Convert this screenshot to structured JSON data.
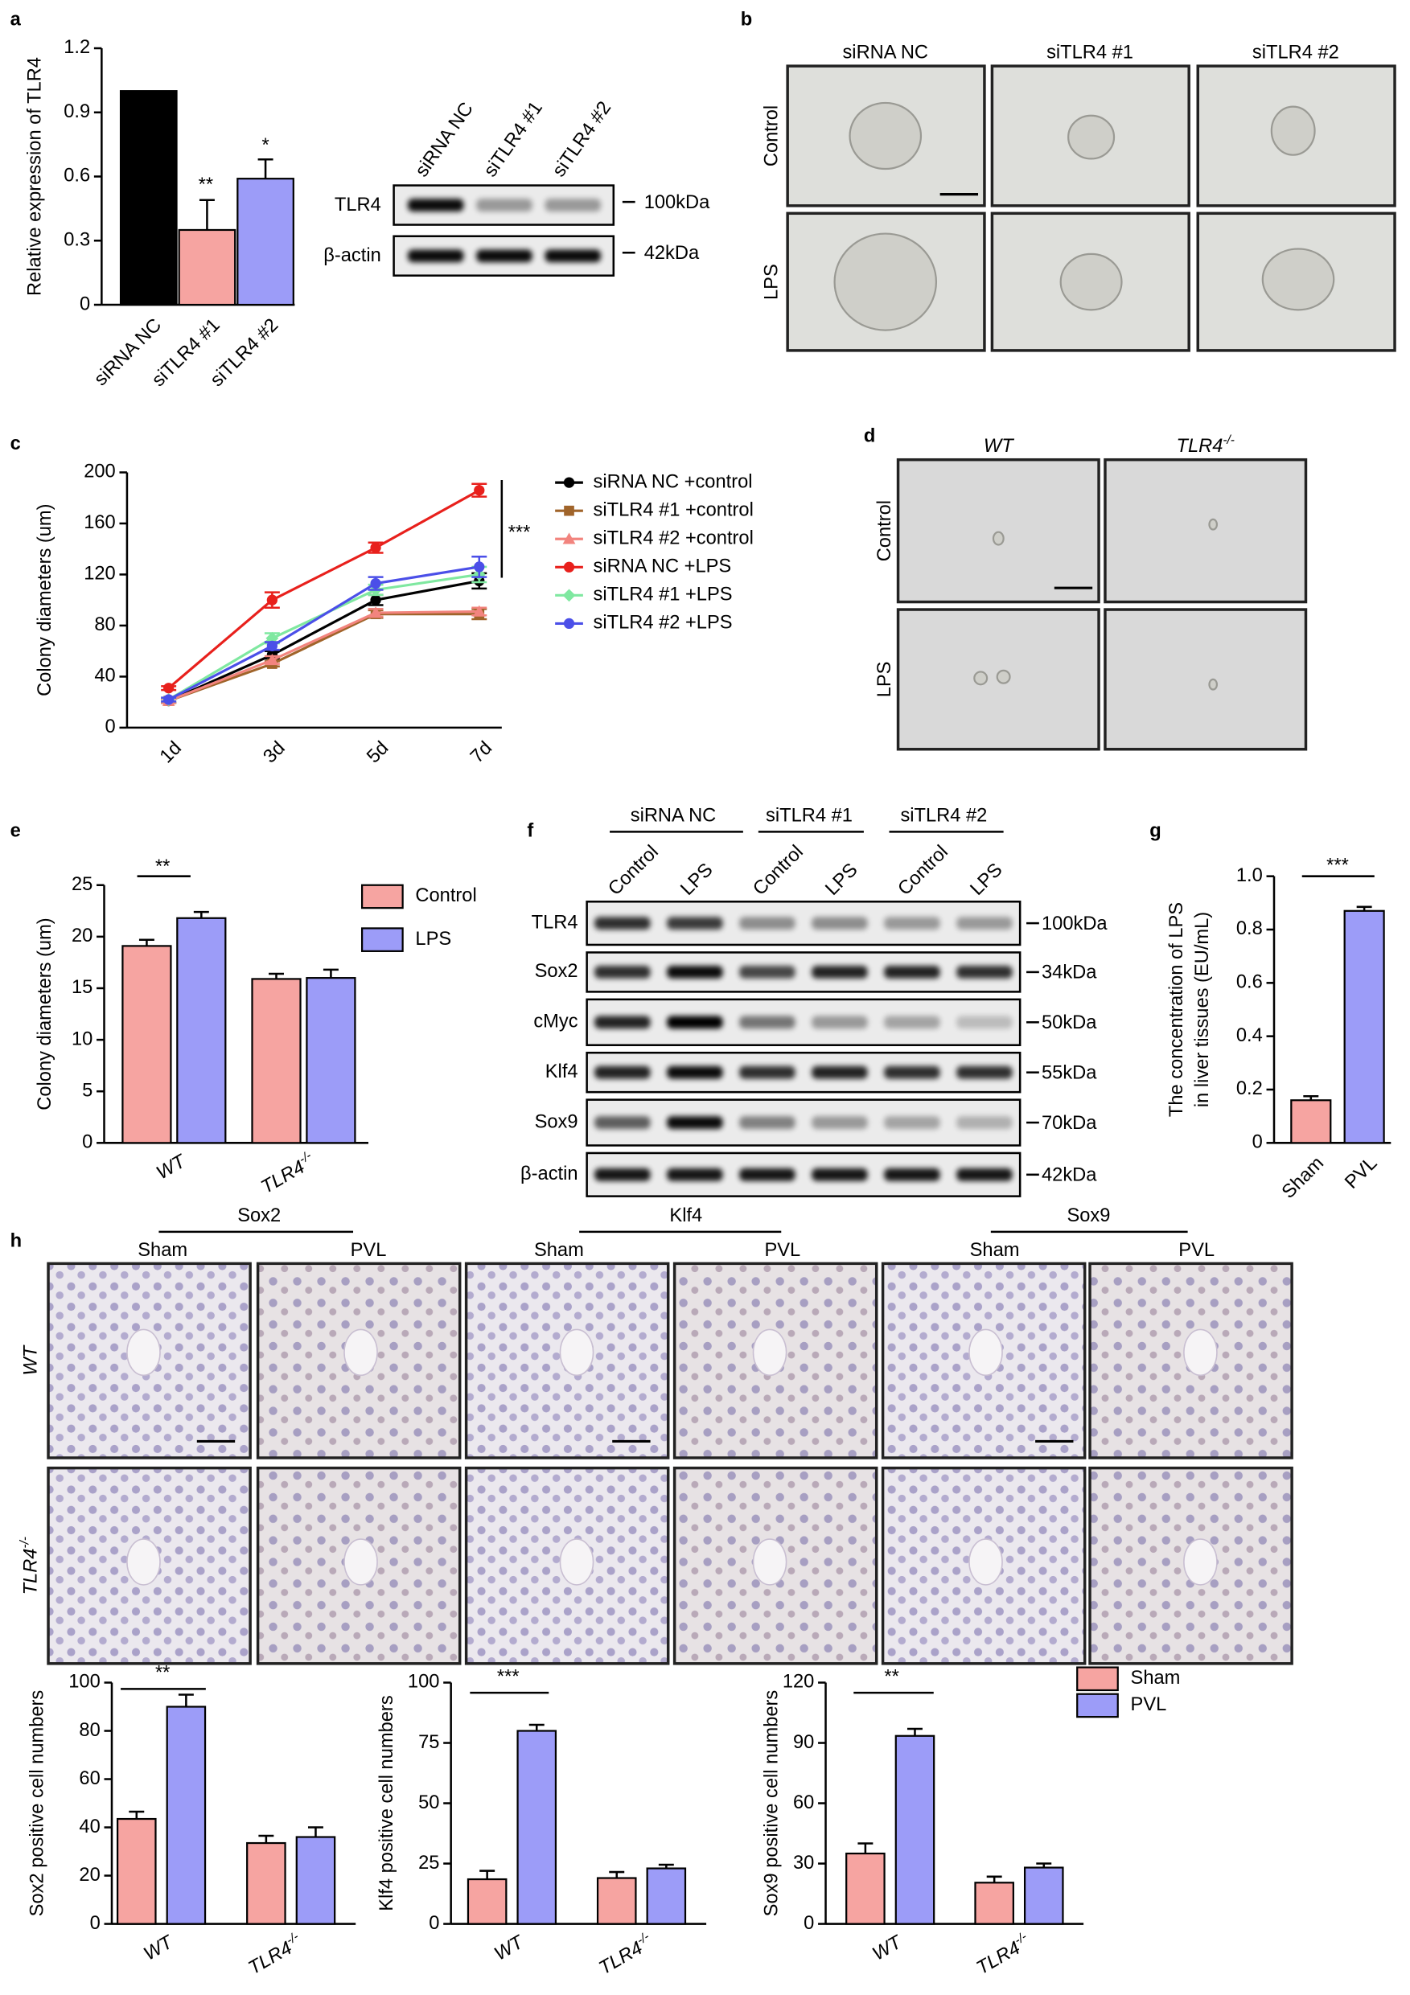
{
  "panel_labels": [
    "a",
    "b",
    "c",
    "d",
    "e",
    "f",
    "g",
    "h"
  ],
  "blot_a": {
    "lanes": [
      "siRNA NC",
      "siTLR4 #1",
      "siTLR4 #2"
    ],
    "rows": [
      "TLR4",
      "β-actin"
    ],
    "sizes": [
      "100kDa",
      "42kDa"
    ]
  },
  "panel_b": {
    "columns": [
      "siRNA NC",
      "siTLR4 #1",
      "siTLR4 #2"
    ],
    "rows": [
      "Control",
      "LPS"
    ]
  },
  "panel_d": {
    "columns": [
      "WT",
      "TLR4-/-"
    ],
    "rows": [
      "Control",
      "LPS"
    ]
  },
  "blot_f": {
    "groups": [
      "siRNA NC",
      "siTLR4 #1",
      "siTLR4 #2"
    ],
    "lanes": [
      "Control",
      "LPS",
      "Control",
      "LPS",
      "Control",
      "LPS"
    ],
    "rows": [
      "TLR4",
      "Sox2",
      "cMyc",
      "Klf4",
      "Sox9",
      "β-actin"
    ],
    "sizes": [
      "100kDa",
      "34kDa",
      "50kDa",
      "55kDa",
      "70kDa",
      "42kDa"
    ]
  },
  "panel_h": {
    "groups": [
      "Sox2",
      "Klf4",
      "Sox9"
    ],
    "conditions": [
      "Sham",
      "PVL",
      "Sham",
      "PVL",
      "Sham",
      "PVL"
    ],
    "rows": [
      "WT",
      "TLR4-/-"
    ]
  },
  "chart_data": [
    {
      "type": "bar",
      "ylabel": "Relative expression of TLR4",
      "categories": [
        "siRNA NC",
        "siTLR4 #1",
        "siTLR4 #2"
      ],
      "values": [
        1,
        0.35,
        0.59
      ],
      "errors": [
        null,
        0.14,
        0.09
      ],
      "colors": [
        "#000000",
        "#f6a4a1",
        "#9c9cf8"
      ],
      "ylim": [
        0,
        1.2
      ],
      "yticks": [
        0,
        0.3,
        0.6,
        0.9,
        1.2
      ],
      "annotations": [
        "**",
        "*"
      ]
    },
    {
      "type": "line",
      "ylabel": "Colony diameters (um)",
      "categories": [
        "1d",
        "3d",
        "5d",
        "7d"
      ],
      "ylim": [
        0,
        200
      ],
      "yticks": [
        0,
        40,
        80,
        120,
        160,
        200
      ],
      "legend": "right",
      "annotations": [
        "***"
      ],
      "series": [
        {
          "name": "siRNA NC +control",
          "color": "#000000",
          "values": [
            21,
            57,
            100,
            115
          ],
          "errors": [
            1.5,
            3,
            4,
            6
          ]
        },
        {
          "name": "siTLR4 #1 +control",
          "color": "#a0642a",
          "values": [
            21,
            50,
            89,
            89
          ],
          "errors": [
            1.5,
            2,
            3,
            4
          ]
        },
        {
          "name": "siTLR4 #2 +control",
          "color": "#f2847e",
          "values": [
            21,
            53,
            90,
            91
          ],
          "errors": [
            1.5,
            3,
            3,
            3
          ]
        },
        {
          "name": "siRNA NC +LPS",
          "color": "#e8201c",
          "values": [
            31,
            100,
            141,
            186
          ],
          "errors": [
            1.5,
            6,
            4,
            5
          ]
        },
        {
          "name": "siTLR4 #1 +LPS",
          "color": "#7fe8a0",
          "values": [
            22,
            70,
            108,
            120
          ],
          "errors": [
            1.5,
            4,
            4,
            6
          ]
        },
        {
          "name": "siTLR4 #2 +LPS",
          "color": "#4b4fe8",
          "values": [
            22,
            64,
            113,
            126
          ],
          "errors": [
            1.5,
            3,
            5,
            8
          ]
        }
      ]
    },
    {
      "type": "bar",
      "ylabel": "Colony diameters (um)",
      "categories": [
        "WT",
        "TLR4-/-"
      ],
      "series": [
        {
          "name": "Control",
          "color": "#f6a4a1",
          "values": [
            19.1,
            15.9
          ],
          "errors": [
            0.6,
            0.5
          ]
        },
        {
          "name": "LPS",
          "color": "#9c9cf8",
          "values": [
            21.8,
            16.0
          ],
          "errors": [
            0.6,
            0.8
          ]
        }
      ],
      "ylim": [
        0,
        25
      ],
      "yticks": [
        0,
        5,
        10,
        15,
        20,
        25
      ],
      "legend": "right",
      "annotations": [
        "**"
      ]
    },
    {
      "type": "bar",
      "ylabel": [
        "The concentration of LPS",
        "in liver tissues (EU/mL)"
      ],
      "categories": [
        "Sham",
        "PVL"
      ],
      "values": [
        0.16,
        0.87
      ],
      "errors": [
        0.015,
        0.015
      ],
      "colors": [
        "#f6a4a1",
        "#9c9cf8"
      ],
      "ylim": [
        0,
        1
      ],
      "yticks": [
        0,
        0.2,
        0.4,
        0.6,
        0.8,
        {
          "value": 1,
          "label": "1.0"
        }
      ],
      "annotations": [
        "***"
      ]
    },
    {
      "type": "bar",
      "ylabel": "Sox2 positive cell numbers",
      "categories": [
        "WT",
        "TLR4-/-"
      ],
      "series": [
        {
          "name": "Sham",
          "color": "#f6a4a1",
          "values": [
            43.5,
            33.5
          ],
          "errors": [
            3,
            3
          ]
        },
        {
          "name": "PVL",
          "color": "#9c9cf8",
          "values": [
            90,
            36
          ],
          "errors": [
            5,
            4
          ]
        }
      ],
      "ylim": [
        0,
        100
      ],
      "yticks": [
        0,
        20,
        40,
        60,
        80,
        100
      ],
      "annotations": [
        "**"
      ]
    },
    {
      "type": "bar",
      "ylabel": "Klf4 positive cell numbers",
      "categories": [
        "WT",
        "TLR4-/-"
      ],
      "series": [
        {
          "name": "Sham",
          "color": "#f6a4a1",
          "values": [
            18.5,
            19
          ],
          "errors": [
            3.5,
            2.5
          ]
        },
        {
          "name": "PVL",
          "color": "#9c9cf8",
          "values": [
            80,
            23
          ],
          "errors": [
            2.5,
            1.5
          ]
        }
      ],
      "ylim": [
        0,
        100
      ],
      "yticks": [
        0,
        25,
        50,
        75,
        100
      ],
      "annotations": [
        "***"
      ]
    },
    {
      "type": "bar",
      "ylabel": "Sox9 positive cell numbers",
      "categories": [
        "WT",
        "TLR4-/-"
      ],
      "series": [
        {
          "name": "Sham",
          "color": "#f6a4a1",
          "values": [
            35,
            20.5
          ],
          "errors": [
            5,
            3
          ]
        },
        {
          "name": "PVL",
          "color": "#9c9cf8",
          "values": [
            93.5,
            28
          ],
          "errors": [
            3.5,
            2
          ]
        }
      ],
      "ylim": [
        0,
        120
      ],
      "yticks": [
        0,
        30,
        60,
        90,
        120
      ],
      "legend": "right",
      "annotations": [
        "**"
      ]
    }
  ]
}
